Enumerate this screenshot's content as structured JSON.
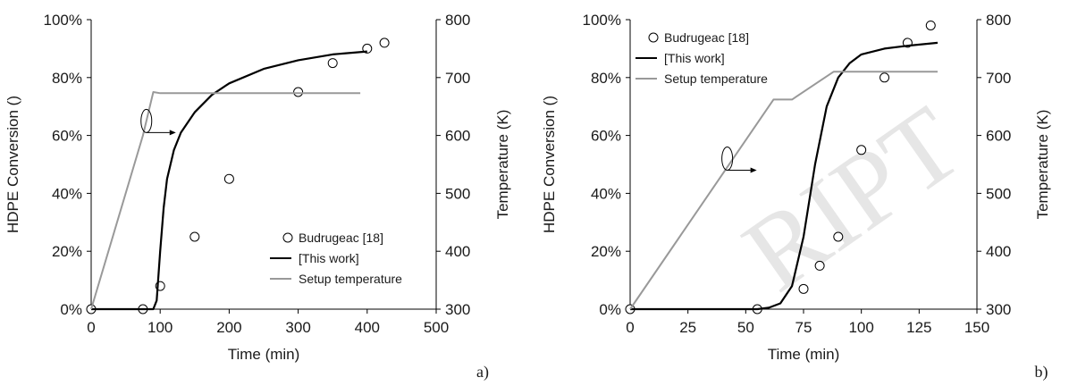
{
  "chart_data": [
    {
      "type": "scatter",
      "panel_label": "a)",
      "xlabel": "Time (min)",
      "ylabel": "HDPE Conversion ()",
      "y2label": "Temperature (K)",
      "xlim": [
        0,
        500
      ],
      "xticks": [
        0,
        100,
        200,
        300,
        400,
        500
      ],
      "ylim": [
        0,
        100
      ],
      "yticks": [
        "0%",
        "20%",
        "40%",
        "60%",
        "80%",
        "100%"
      ],
      "y2lim": [
        300,
        800
      ],
      "y2ticks": [
        300,
        400,
        500,
        600,
        700,
        800
      ],
      "legend_position": "lower-right",
      "series": [
        {
          "name": "Budrugeac [18]",
          "kind": "markers",
          "axis": "left",
          "x": [
            0,
            75,
            100,
            150,
            200,
            300,
            350,
            400,
            425
          ],
          "y": [
            0,
            0,
            8,
            25,
            45,
            75,
            85,
            90,
            92
          ]
        },
        {
          "name": "[This work]",
          "kind": "line",
          "axis": "left",
          "color": "#000000",
          "x": [
            0,
            50,
            90,
            95,
            100,
            105,
            110,
            120,
            130,
            150,
            175,
            200,
            250,
            300,
            350,
            400
          ],
          "y": [
            0,
            0,
            0,
            3,
            20,
            35,
            45,
            55,
            61,
            68,
            74,
            78,
            83,
            86,
            88,
            89
          ]
        },
        {
          "name": "Setup temperature",
          "kind": "line",
          "axis": "right",
          "color": "#999999",
          "x": [
            0,
            75,
            90,
            100,
            390
          ],
          "y": [
            300,
            600,
            675,
            673,
            673
          ]
        }
      ],
      "annotation": {
        "kind": "ellipse-arrow",
        "x": 80,
        "y": 65,
        "direction": "right"
      }
    },
    {
      "type": "scatter",
      "panel_label": "b)",
      "xlabel": "Time (min)",
      "ylabel": "HDPE Conversion ()",
      "y2label": "Temperature (K)",
      "xlim": [
        0,
        150
      ],
      "xticks": [
        0,
        25,
        50,
        75,
        100,
        125,
        150
      ],
      "ylim": [
        0,
        100
      ],
      "yticks": [
        "0%",
        "20%",
        "40%",
        "60%",
        "80%",
        "100%"
      ],
      "y2lim": [
        300,
        800
      ],
      "y2ticks": [
        300,
        400,
        500,
        600,
        700,
        800
      ],
      "legend_position": "top-left",
      "series": [
        {
          "name": "Budrugeac [18]",
          "kind": "markers",
          "axis": "left",
          "x": [
            0,
            55,
            75,
            82,
            90,
            100,
            110,
            120,
            130
          ],
          "y": [
            0,
            0,
            7,
            15,
            25,
            55,
            80,
            92,
            98
          ]
        },
        {
          "name": "[This work]",
          "kind": "line",
          "axis": "left",
          "color": "#000000",
          "x": [
            0,
            55,
            60,
            65,
            70,
            75,
            80,
            85,
            90,
            95,
            100,
            110,
            120,
            133
          ],
          "y": [
            0,
            0,
            0.5,
            2,
            8,
            25,
            50,
            70,
            80,
            85,
            88,
            90,
            91,
            92
          ]
        },
        {
          "name": "Setup temperature",
          "kind": "line",
          "axis": "right",
          "color": "#999999",
          "x": [
            0,
            62,
            70,
            88,
            133
          ],
          "y": [
            300,
            662,
            662,
            710,
            710
          ]
        }
      ],
      "annotation": {
        "kind": "ellipse-arrow",
        "x": 42,
        "y": 52,
        "direction": "right"
      }
    }
  ],
  "watermark": "RIPT"
}
